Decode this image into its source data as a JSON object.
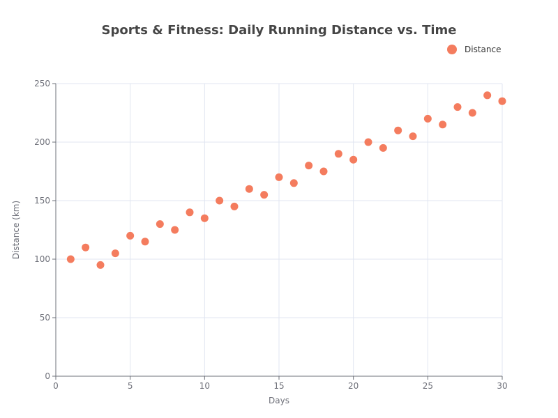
{
  "chart_data": {
    "type": "scatter",
    "title": "Sports & Fitness: Daily Running Distance vs. Time",
    "xlabel": "Days",
    "ylabel": "Distance (km)",
    "xlim": [
      0,
      30
    ],
    "ylim": [
      0,
      250
    ],
    "xticks": [
      0,
      5,
      10,
      15,
      20,
      25,
      30
    ],
    "yticks": [
      0,
      50,
      100,
      150,
      200,
      250
    ],
    "grid": true,
    "legend_position": "top-right",
    "series": [
      {
        "name": "Distance",
        "color": "#f47c5e",
        "points": [
          {
            "x": 1,
            "y": 100
          },
          {
            "x": 2,
            "y": 110
          },
          {
            "x": 3,
            "y": 95
          },
          {
            "x": 4,
            "y": 105
          },
          {
            "x": 5,
            "y": 120
          },
          {
            "x": 6,
            "y": 115
          },
          {
            "x": 7,
            "y": 130
          },
          {
            "x": 8,
            "y": 125
          },
          {
            "x": 9,
            "y": 140
          },
          {
            "x": 10,
            "y": 135
          },
          {
            "x": 11,
            "y": 150
          },
          {
            "x": 12,
            "y": 145
          },
          {
            "x": 13,
            "y": 160
          },
          {
            "x": 14,
            "y": 155
          },
          {
            "x": 15,
            "y": 170
          },
          {
            "x": 16,
            "y": 165
          },
          {
            "x": 17,
            "y": 180
          },
          {
            "x": 18,
            "y": 175
          },
          {
            "x": 19,
            "y": 190
          },
          {
            "x": 20,
            "y": 185
          },
          {
            "x": 21,
            "y": 200
          },
          {
            "x": 22,
            "y": 195
          },
          {
            "x": 23,
            "y": 210
          },
          {
            "x": 24,
            "y": 205
          },
          {
            "x": 25,
            "y": 220
          },
          {
            "x": 26,
            "y": 215
          },
          {
            "x": 27,
            "y": 230
          },
          {
            "x": 28,
            "y": 225
          },
          {
            "x": 29,
            "y": 240
          },
          {
            "x": 30,
            "y": 235
          }
        ]
      }
    ]
  }
}
